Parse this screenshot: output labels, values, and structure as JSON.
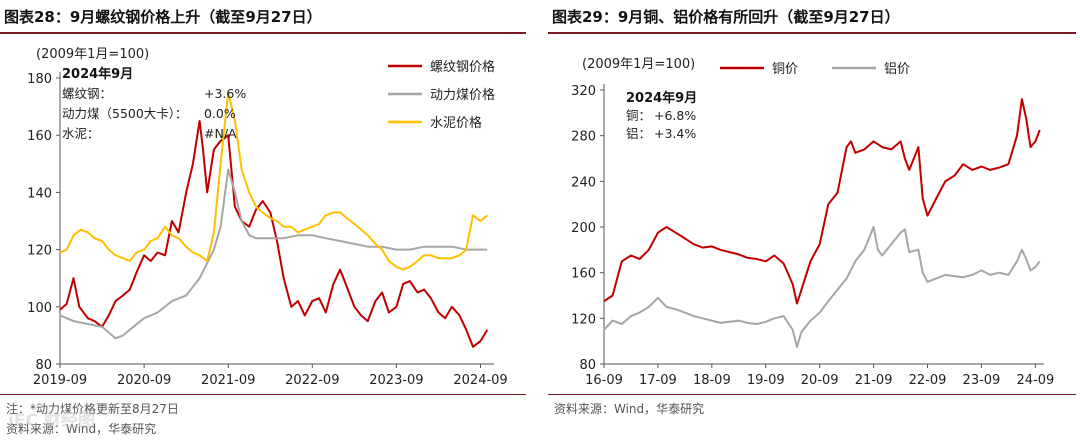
{
  "left": {
    "title": "图表28：9月螺纹钢价格上升（截至9月27日）",
    "note": "注：*动力煤价格更新至8月27日",
    "source": "资料来源：Wind，华泰研究",
    "watermark": "iFC 财经图"
  },
  "right": {
    "title": "图表29：9月铜、铝价格有所回升（截至9月27日）",
    "source": "资料来源：Wind，华泰研究"
  },
  "chart_data": [
    {
      "type": "line",
      "unit_label": "(2009年1月=100)",
      "ylim": [
        80,
        180
      ],
      "yticks": [
        80,
        100,
        120,
        140,
        160,
        180
      ],
      "xlim": [
        2019.67,
        2024.83
      ],
      "xticks": [
        {
          "v": 2019.67,
          "label": "2019-09"
        },
        {
          "v": 2020.67,
          "label": "2020-09"
        },
        {
          "v": 2021.67,
          "label": "2021-09"
        },
        {
          "v": 2022.67,
          "label": "2022-09"
        },
        {
          "v": 2023.67,
          "label": "2023-09"
        },
        {
          "v": 2024.67,
          "label": "2024-09"
        }
      ],
      "annotation": {
        "header": "2024年9月",
        "rows": [
          {
            "label": "螺纹钢：",
            "value": "+3.6%"
          },
          {
            "label": "动力煤（5500大卡）：",
            "value": "0.0%"
          },
          {
            "label": "水泥：",
            "value": "#N/A"
          }
        ]
      },
      "legend_position": "top-right",
      "series": [
        {
          "name": "螺纹钢价格",
          "color": "#c00000",
          "x": [
            2019.67,
            2019.75,
            2019.83,
            2019.9,
            2020.0,
            2020.08,
            2020.17,
            2020.25,
            2020.33,
            2020.42,
            2020.5,
            2020.58,
            2020.67,
            2020.75,
            2020.83,
            2020.92,
            2021.0,
            2021.08,
            2021.17,
            2021.25,
            2021.33,
            2021.37,
            2021.42,
            2021.5,
            2021.58,
            2021.67,
            2021.75,
            2021.83,
            2021.92,
            2022.0,
            2022.08,
            2022.17,
            2022.25,
            2022.33,
            2022.42,
            2022.5,
            2022.58,
            2022.67,
            2022.75,
            2022.83,
            2022.92,
            2023.0,
            2023.08,
            2023.17,
            2023.25,
            2023.33,
            2023.42,
            2023.5,
            2023.58,
            2023.67,
            2023.75,
            2023.83,
            2023.92,
            2024.0,
            2024.08,
            2024.17,
            2024.25,
            2024.33,
            2024.42,
            2024.5,
            2024.58,
            2024.67,
            2024.75
          ],
          "y": [
            99,
            101,
            110,
            100,
            96,
            95,
            93,
            97,
            102,
            104,
            106,
            112,
            118,
            116,
            119,
            118,
            130,
            126,
            140,
            150,
            165,
            155,
            140,
            155,
            158,
            160,
            135,
            130,
            128,
            134,
            137,
            133,
            123,
            110,
            100,
            102,
            97,
            102,
            103,
            98,
            108,
            113,
            107,
            100,
            97,
            95,
            102,
            105,
            98,
            100,
            108,
            109,
            105,
            106,
            103,
            98,
            96,
            100,
            97,
            92,
            86,
            88,
            92
          ]
        },
        {
          "name": "动力煤价格",
          "color": "#a6a6a6",
          "x": [
            2019.67,
            2019.83,
            2020.0,
            2020.17,
            2020.25,
            2020.33,
            2020.42,
            2020.5,
            2020.67,
            2020.83,
            2021.0,
            2021.17,
            2021.33,
            2021.5,
            2021.58,
            2021.67,
            2021.75,
            2021.83,
            2021.92,
            2022.0,
            2022.17,
            2022.33,
            2022.5,
            2022.67,
            2022.83,
            2023.0,
            2023.17,
            2023.33,
            2023.5,
            2023.67,
            2023.83,
            2024.0,
            2024.17,
            2024.33,
            2024.5,
            2024.67,
            2024.75
          ],
          "y": [
            97,
            95,
            94,
            93,
            91,
            89,
            90,
            92,
            96,
            98,
            102,
            104,
            110,
            120,
            128,
            148,
            140,
            130,
            125,
            124,
            124,
            124,
            125,
            125,
            124,
            123,
            122,
            121,
            121,
            120,
            120,
            121,
            121,
            121,
            120,
            120,
            120
          ]
        },
        {
          "name": "水泥价格",
          "color": "#ffc000",
          "x": [
            2019.67,
            2019.75,
            2019.83,
            2019.92,
            2020.0,
            2020.08,
            2020.17,
            2020.25,
            2020.33,
            2020.42,
            2020.5,
            2020.58,
            2020.67,
            2020.75,
            2020.83,
            2020.92,
            2021.0,
            2021.08,
            2021.17,
            2021.25,
            2021.33,
            2021.42,
            2021.5,
            2021.58,
            2021.67,
            2021.75,
            2021.83,
            2021.92,
            2022.0,
            2022.08,
            2022.17,
            2022.25,
            2022.33,
            2022.42,
            2022.5,
            2022.58,
            2022.67,
            2022.75,
            2022.83,
            2022.92,
            2023.0,
            2023.08,
            2023.17,
            2023.25,
            2023.33,
            2023.42,
            2023.5,
            2023.58,
            2023.67,
            2023.75,
            2023.83,
            2023.92,
            2024.0,
            2024.08,
            2024.17,
            2024.25,
            2024.33,
            2024.42,
            2024.5,
            2024.58,
            2024.67,
            2024.75
          ],
          "y": [
            119,
            120,
            125,
            127,
            126,
            124,
            123,
            120,
            118,
            117,
            116,
            119,
            120,
            123,
            124,
            128,
            125,
            124,
            121,
            119,
            118,
            116,
            126,
            150,
            175,
            165,
            148,
            140,
            135,
            133,
            131,
            130,
            128,
            128,
            126,
            127,
            128,
            129,
            132,
            133,
            133,
            131,
            129,
            127,
            125,
            122,
            120,
            116,
            114,
            113,
            114,
            116,
            118,
            118,
            117,
            117,
            117,
            118,
            120,
            132,
            130,
            132
          ]
        }
      ]
    },
    {
      "type": "line",
      "unit_label": "(2009年1月=100)",
      "ylim": [
        80,
        320
      ],
      "yticks": [
        80,
        120,
        160,
        200,
        240,
        280,
        320
      ],
      "xlim": [
        2016.67,
        2024.83
      ],
      "xticks": [
        {
          "v": 2016.67,
          "label": "16-09"
        },
        {
          "v": 2017.67,
          "label": "17-09"
        },
        {
          "v": 2018.67,
          "label": "18-09"
        },
        {
          "v": 2019.67,
          "label": "19-09"
        },
        {
          "v": 2020.67,
          "label": "20-09"
        },
        {
          "v": 2021.67,
          "label": "21-09"
        },
        {
          "v": 2022.67,
          "label": "22-09"
        },
        {
          "v": 2023.67,
          "label": "23-09"
        },
        {
          "v": 2024.67,
          "label": "24-09"
        }
      ],
      "annotation": {
        "header": "2024年9月",
        "rows": [
          {
            "label": "铜：",
            "value": "+6.8%"
          },
          {
            "label": "铝：",
            "value": "+3.4%"
          }
        ]
      },
      "legend_position": "top",
      "series": [
        {
          "name": "铜价",
          "color": "#c00000",
          "x": [
            2016.67,
            2016.83,
            2017.0,
            2017.17,
            2017.33,
            2017.5,
            2017.67,
            2017.83,
            2018.0,
            2018.17,
            2018.33,
            2018.5,
            2018.67,
            2018.83,
            2019.0,
            2019.17,
            2019.33,
            2019.5,
            2019.67,
            2019.83,
            2020.0,
            2020.17,
            2020.25,
            2020.33,
            2020.5,
            2020.67,
            2020.83,
            2021.0,
            2021.17,
            2021.25,
            2021.33,
            2021.5,
            2021.67,
            2021.83,
            2022.0,
            2022.17,
            2022.25,
            2022.33,
            2022.5,
            2022.58,
            2022.67,
            2022.83,
            2023.0,
            2023.17,
            2023.33,
            2023.5,
            2023.67,
            2023.83,
            2024.0,
            2024.17,
            2024.33,
            2024.42,
            2024.5,
            2024.58,
            2024.67,
            2024.75
          ],
          "y": [
            135,
            140,
            170,
            175,
            172,
            180,
            195,
            200,
            195,
            190,
            185,
            182,
            183,
            180,
            178,
            176,
            173,
            172,
            170,
            175,
            168,
            150,
            133,
            145,
            170,
            185,
            220,
            230,
            270,
            275,
            265,
            268,
            275,
            270,
            268,
            275,
            260,
            250,
            270,
            225,
            210,
            225,
            240,
            245,
            255,
            250,
            253,
            250,
            252,
            255,
            280,
            312,
            295,
            270,
            275,
            285
          ]
        },
        {
          "name": "铝价",
          "color": "#a6a6a6",
          "x": [
            2016.67,
            2016.83,
            2017.0,
            2017.17,
            2017.33,
            2017.5,
            2017.67,
            2017.83,
            2018.0,
            2018.17,
            2018.33,
            2018.5,
            2018.67,
            2018.83,
            2019.0,
            2019.17,
            2019.33,
            2019.5,
            2019.67,
            2019.83,
            2020.0,
            2020.17,
            2020.25,
            2020.33,
            2020.5,
            2020.67,
            2020.83,
            2021.0,
            2021.17,
            2021.33,
            2021.5,
            2021.67,
            2021.75,
            2021.83,
            2022.0,
            2022.17,
            2022.25,
            2022.33,
            2022.5,
            2022.58,
            2022.67,
            2022.83,
            2023.0,
            2023.17,
            2023.33,
            2023.5,
            2023.67,
            2023.83,
            2024.0,
            2024.17,
            2024.33,
            2024.42,
            2024.5,
            2024.58,
            2024.67,
            2024.75
          ],
          "y": [
            110,
            118,
            115,
            122,
            125,
            130,
            138,
            130,
            128,
            125,
            122,
            120,
            118,
            116,
            117,
            118,
            116,
            115,
            117,
            120,
            122,
            110,
            95,
            108,
            118,
            125,
            135,
            145,
            155,
            170,
            180,
            200,
            180,
            175,
            185,
            195,
            198,
            178,
            180,
            160,
            152,
            155,
            158,
            157,
            156,
            158,
            162,
            158,
            160,
            158,
            170,
            180,
            172,
            162,
            165,
            170
          ]
        }
      ]
    }
  ]
}
